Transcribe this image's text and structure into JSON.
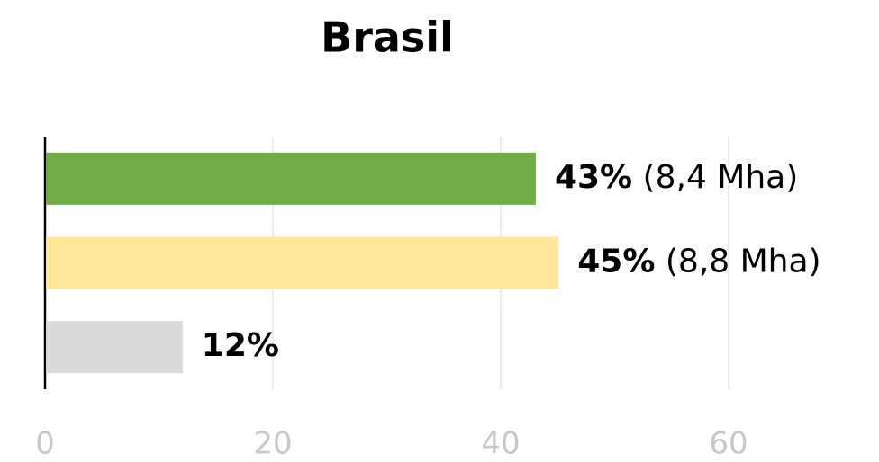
{
  "chart_data": {
    "type": "barh",
    "title": "Brasil",
    "categories": [
      null,
      null,
      null
    ],
    "values": [
      43,
      45,
      12
    ],
    "value_labels": [
      "43%",
      "45%",
      "12%"
    ],
    "annotations": [
      "(8,4 Mha)",
      "(8,8 Mha)",
      null
    ],
    "colors": [
      "#70ad47",
      "#ffe699",
      "#d9d9d9"
    ],
    "xlim": [
      0,
      70
    ],
    "xticks": [
      0,
      20,
      40,
      60
    ],
    "grid": true
  }
}
